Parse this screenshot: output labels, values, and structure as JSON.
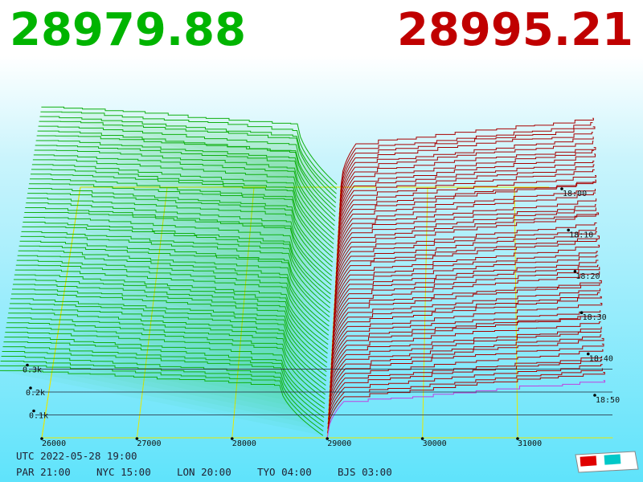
{
  "header": {
    "bid": "28979.88",
    "ask": "28995.21"
  },
  "price_axis": [
    "26000",
    "27000",
    "28000",
    "29000",
    "30000",
    "31000"
  ],
  "depth_axis": [
    "0.1k",
    "0.2k",
    "0.3k"
  ],
  "time_axis": [
    "18:00",
    "18:10",
    "18:20",
    "18:30",
    "18:40",
    "18:50"
  ],
  "footer": {
    "utc": "UTC 2022-05-28 19:00",
    "zones": [
      "PAR 21:00",
      "NYC 15:00",
      "LON 20:00",
      "TYO 04:00",
      "BJS 03:00"
    ]
  }
}
